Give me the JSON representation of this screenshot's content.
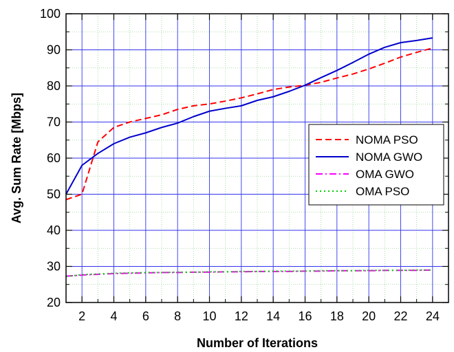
{
  "chart_data": {
    "type": "line",
    "xlabel": "Number of Iterations",
    "ylabel": "Avg. Sum Rate [Mbps]",
    "xlim": [
      1,
      25
    ],
    "ylim": [
      20,
      100
    ],
    "x_ticks": [
      2,
      4,
      6,
      8,
      10,
      12,
      14,
      16,
      18,
      20,
      22,
      24
    ],
    "y_ticks": [
      20,
      30,
      40,
      50,
      60,
      70,
      80,
      90,
      100
    ],
    "x_tick_labels": [
      "2",
      "4",
      "6",
      "8",
      "10",
      "12",
      "14",
      "16",
      "18",
      "20",
      "22",
      "24"
    ],
    "y_tick_labels": [
      "20",
      "30",
      "40",
      "50",
      "60",
      "70",
      "80",
      "90",
      "100"
    ],
    "grid": true,
    "legend_position": "right",
    "x": [
      1,
      2,
      3,
      4,
      5,
      6,
      7,
      8,
      9,
      10,
      11,
      12,
      13,
      14,
      15,
      16,
      17,
      18,
      19,
      20,
      21,
      22,
      23,
      24
    ],
    "series": [
      {
        "name": "NOMA PSO",
        "color": "#ff0000",
        "dash": "dashed",
        "values": [
          48.5,
          50.0,
          64.5,
          68.5,
          70.0,
          71.0,
          72.0,
          73.5,
          74.5,
          75.0,
          75.8,
          76.7,
          77.8,
          79.0,
          79.7,
          80.2,
          81.0,
          82.2,
          83.3,
          84.7,
          86.3,
          88.0,
          89.3,
          90.5
        ]
      },
      {
        "name": "NOMA GWO",
        "color": "#0000cc",
        "dash": "solid",
        "values": [
          50.0,
          58.0,
          61.3,
          64.0,
          65.8,
          67.0,
          68.5,
          69.7,
          71.5,
          73.0,
          73.8,
          74.5,
          76.0,
          77.0,
          78.5,
          80.2,
          82.3,
          84.3,
          86.5,
          88.8,
          90.7,
          92.0,
          92.6,
          93.3
        ]
      },
      {
        "name": "OMA GWO",
        "color": "#ff00ff",
        "dash": "dashdot",
        "values": [
          27.3,
          27.6,
          27.8,
          28.0,
          28.1,
          28.2,
          28.3,
          28.3,
          28.4,
          28.4,
          28.5,
          28.5,
          28.6,
          28.6,
          28.6,
          28.7,
          28.7,
          28.8,
          28.8,
          28.8,
          28.9,
          28.9,
          28.9,
          29.0
        ]
      },
      {
        "name": "OMA PSO",
        "color": "#00cc00",
        "dash": "dotted",
        "values": [
          27.2,
          27.7,
          27.9,
          28.1,
          28.2,
          28.3,
          28.3,
          28.4,
          28.4,
          28.5,
          28.5,
          28.6,
          28.6,
          28.7,
          28.7,
          28.7,
          28.8,
          28.8,
          28.8,
          28.9,
          28.9,
          28.9,
          29.0,
          29.0
        ]
      }
    ]
  }
}
